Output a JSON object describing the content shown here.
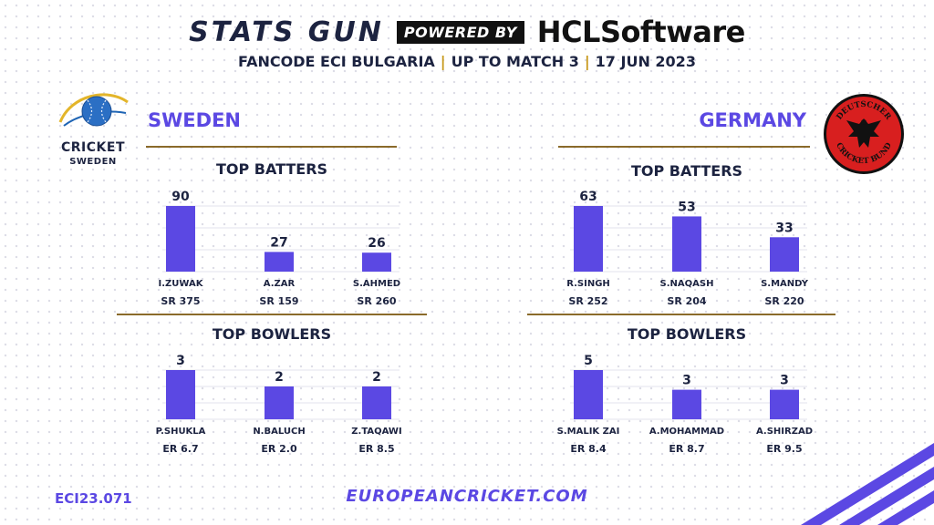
{
  "header": {
    "brand_left": "STATS GUN",
    "brand_badge": "POWERED BY",
    "brand_right": "HCLSoftware",
    "subtitle_parts": [
      "FANCODE ECI BULGARIA",
      "UP TO MATCH 3",
      "17 JUN 2023"
    ],
    "separator": "|"
  },
  "colors": {
    "accent": "#5b48e3",
    "gold": "#c89a1d",
    "navy": "#1c2340"
  },
  "sweden": {
    "team": "SWEDEN",
    "logo_text": "CRICKET",
    "logo_subtext": "SWEDEN"
  },
  "germany": {
    "team": "GERMANY",
    "logo_text_top": "DEUTSCHER",
    "logo_text_bottom": "CRICKET BUND"
  },
  "sections": {
    "batters": "TOP BATTERS",
    "bowlers": "TOP BOWLERS"
  },
  "chart_data": [
    {
      "type": "bar",
      "title": "TOP BATTERS",
      "team": "SWEDEN",
      "categories": [
        "I.ZUWAK",
        "A.ZAR",
        "S.AHMED"
      ],
      "values": [
        90,
        27,
        26
      ],
      "stats": [
        "SR 375",
        "SR 159",
        "SR 260"
      ],
      "ylim": [
        0,
        90
      ]
    },
    {
      "type": "bar",
      "title": "TOP BATTERS",
      "team": "GERMANY",
      "categories": [
        "R.SINGH",
        "S.NAQASH",
        "S.MANDY"
      ],
      "values": [
        63,
        53,
        33
      ],
      "stats": [
        "SR 252",
        "SR 204",
        "SR 220"
      ],
      "ylim": [
        0,
        63
      ]
    },
    {
      "type": "bar",
      "title": "TOP BOWLERS",
      "team": "SWEDEN",
      "categories": [
        "P.SHUKLA",
        "N.BALUCH",
        "Z.TAQAWI"
      ],
      "values": [
        3,
        2,
        2
      ],
      "stats": [
        "ER 6.7",
        "ER 2.0",
        "ER 8.5"
      ],
      "ylim": [
        0,
        3
      ]
    },
    {
      "type": "bar",
      "title": "TOP BOWLERS",
      "team": "GERMANY",
      "categories": [
        "S.MALIK ZAI",
        "A.MOHAMMAD",
        "A.SHIRZAD"
      ],
      "values": [
        5,
        3,
        3
      ],
      "stats": [
        "ER 8.4",
        "ER 8.7",
        "ER 9.5"
      ],
      "ylim": [
        0,
        5
      ]
    }
  ],
  "footer": {
    "code": "ECI23.071",
    "url": "EUROPEANCRICKET.COM"
  }
}
